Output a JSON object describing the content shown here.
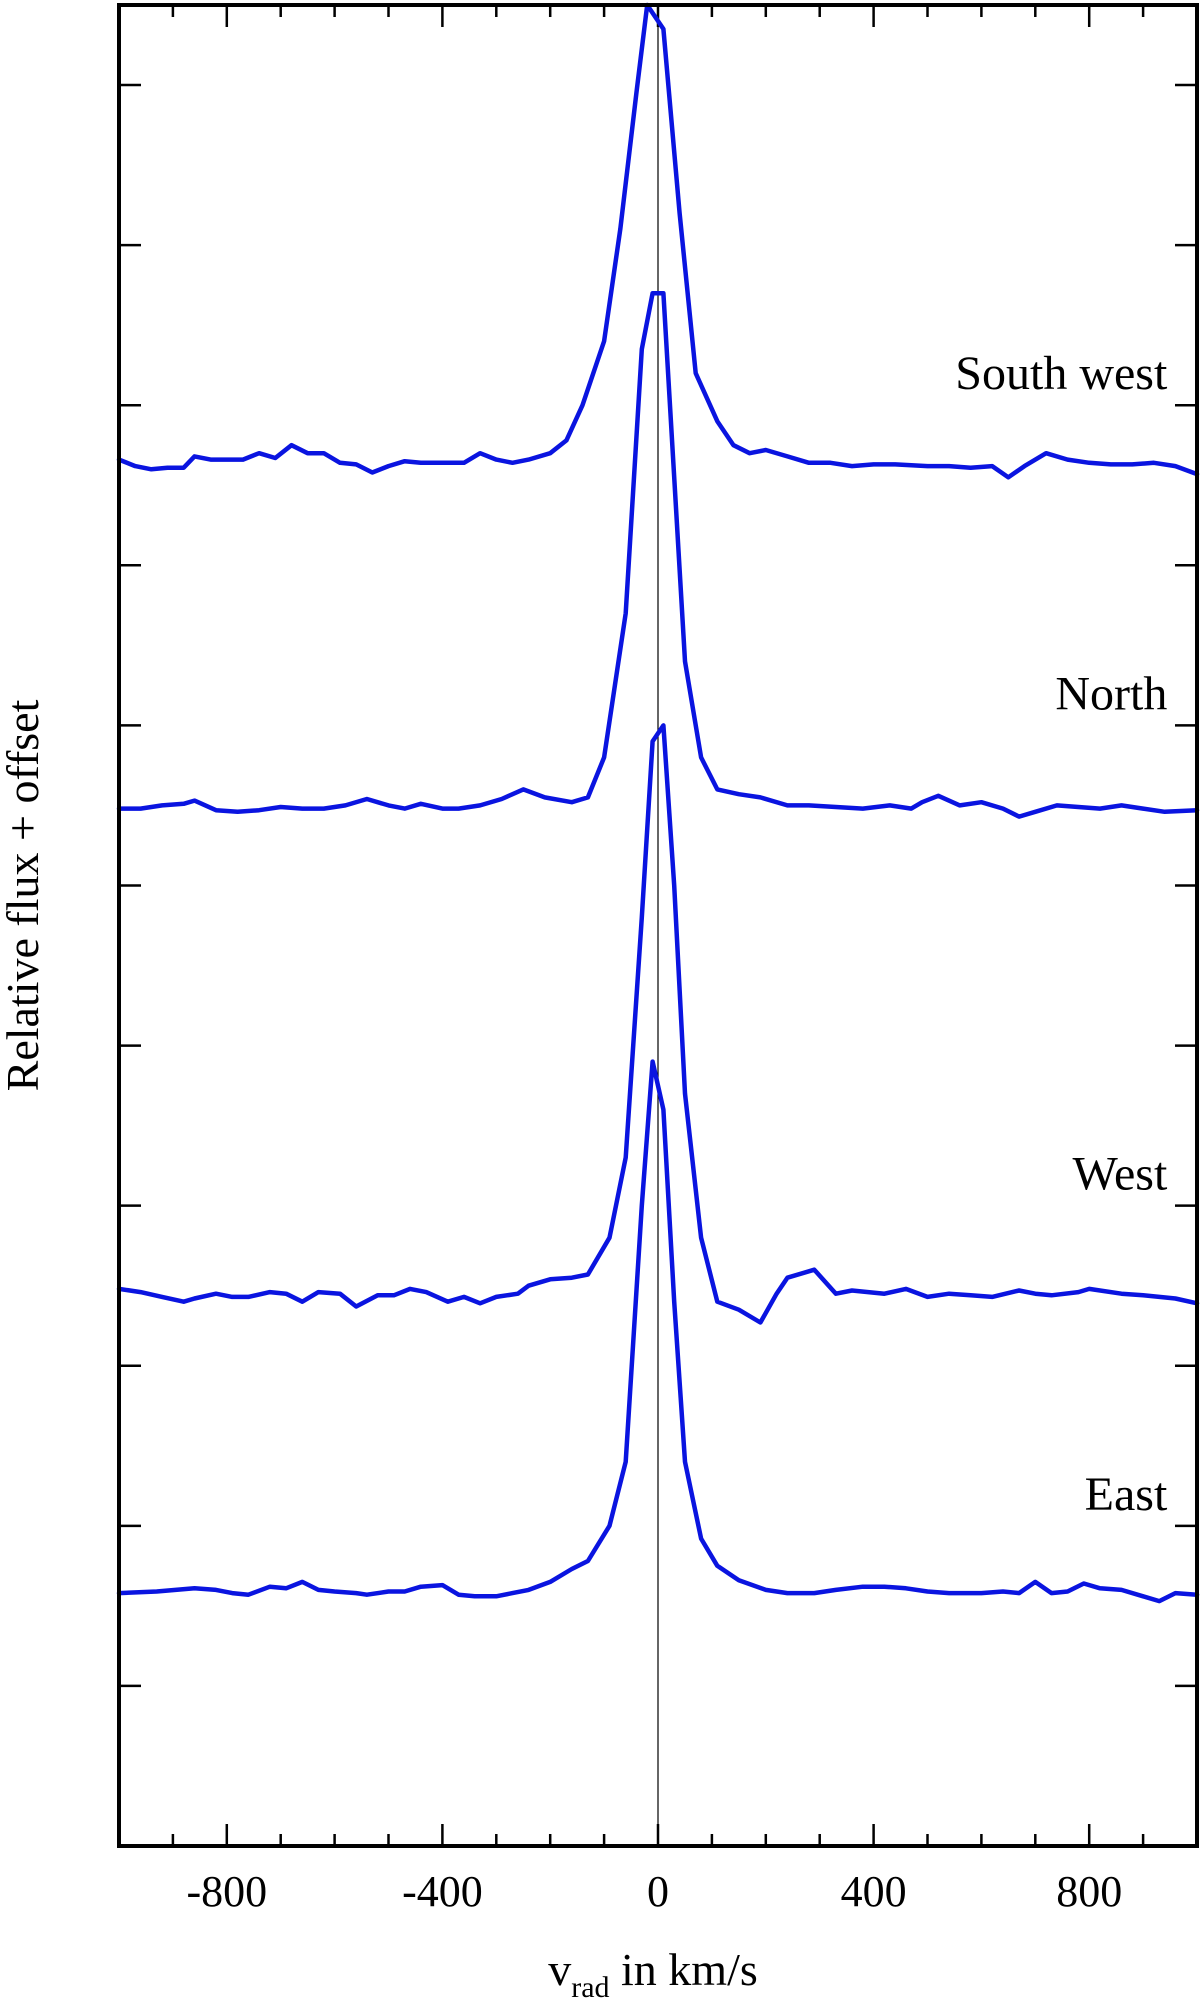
{
  "chart_data": {
    "type": "line",
    "title": "",
    "xlabel": {
      "main": "v",
      "sub": "rad",
      "rest": " in km/s"
    },
    "ylabel": "Relative flux + offset",
    "xlim": [
      -1000,
      1000
    ],
    "ylim": [
      0,
      11.5
    ],
    "x_ticks": [
      -800,
      -400,
      0,
      400,
      800
    ],
    "x_tick_labels": [
      "-800",
      "-400",
      "0",
      "400",
      "800"
    ],
    "x_minor_step": 100,
    "y_ticks": [
      1,
      2,
      3,
      4,
      5,
      6,
      7,
      8,
      9,
      10,
      11
    ],
    "y_tick_labels_shown": false,
    "zero_line": true,
    "line_color": "#0a14e0",
    "series": [
      {
        "name": "East",
        "label_x": 880,
        "label_y": 2.1,
        "x": [
          -1000,
          -930,
          -860,
          -820,
          -790,
          -760,
          -720,
          -690,
          -660,
          -630,
          -600,
          -560,
          -540,
          -500,
          -470,
          -440,
          -400,
          -370,
          -340,
          -300,
          -270,
          -240,
          -200,
          -160,
          -130,
          -90,
          -60,
          -30,
          -10,
          10,
          30,
          50,
          80,
          110,
          150,
          200,
          240,
          290,
          330,
          380,
          420,
          460,
          500,
          540,
          600,
          640,
          670,
          700,
          730,
          760,
          790,
          820,
          860,
          900,
          930,
          960,
          1000
        ],
        "y": [
          1.58,
          1.59,
          1.61,
          1.6,
          1.58,
          1.57,
          1.62,
          1.61,
          1.65,
          1.6,
          1.59,
          1.58,
          1.57,
          1.59,
          1.59,
          1.62,
          1.63,
          1.57,
          1.56,
          1.56,
          1.58,
          1.6,
          1.65,
          1.73,
          1.78,
          2.0,
          2.4,
          4.0,
          4.9,
          4.6,
          3.4,
          2.4,
          1.92,
          1.75,
          1.66,
          1.6,
          1.58,
          1.58,
          1.6,
          1.62,
          1.62,
          1.61,
          1.59,
          1.58,
          1.58,
          1.59,
          1.58,
          1.65,
          1.58,
          1.59,
          1.64,
          1.61,
          1.6,
          1.56,
          1.53,
          1.58,
          1.57
        ]
      },
      {
        "name": "West",
        "label_x": 880,
        "label_y": 4.1,
        "x": [
          -1000,
          -960,
          -920,
          -880,
          -860,
          -820,
          -790,
          -760,
          -720,
          -690,
          -660,
          -630,
          -590,
          -560,
          -520,
          -490,
          -460,
          -430,
          -390,
          -360,
          -330,
          -300,
          -260,
          -240,
          -200,
          -160,
          -130,
          -90,
          -60,
          -30,
          -10,
          10,
          30,
          50,
          80,
          110,
          150,
          190,
          220,
          240,
          290,
          330,
          360,
          420,
          460,
          500,
          540,
          580,
          620,
          670,
          700,
          730,
          780,
          800,
          860,
          900,
          960,
          1000
        ],
        "y": [
          3.48,
          3.46,
          3.43,
          3.4,
          3.42,
          3.45,
          3.43,
          3.43,
          3.46,
          3.45,
          3.4,
          3.46,
          3.45,
          3.37,
          3.44,
          3.44,
          3.48,
          3.46,
          3.4,
          3.43,
          3.39,
          3.43,
          3.45,
          3.5,
          3.54,
          3.55,
          3.57,
          3.8,
          4.3,
          5.8,
          6.9,
          7.0,
          6.0,
          4.7,
          3.8,
          3.4,
          3.35,
          3.27,
          3.45,
          3.55,
          3.6,
          3.45,
          3.47,
          3.45,
          3.48,
          3.43,
          3.45,
          3.44,
          3.43,
          3.47,
          3.45,
          3.44,
          3.46,
          3.48,
          3.45,
          3.44,
          3.42,
          3.39
        ]
      },
      {
        "name": "North",
        "label_x": 880,
        "label_y": 7.1,
        "x": [
          -1000,
          -960,
          -920,
          -880,
          -860,
          -820,
          -780,
          -740,
          -700,
          -660,
          -620,
          -580,
          -540,
          -500,
          -470,
          -440,
          -400,
          -370,
          -330,
          -290,
          -250,
          -210,
          -160,
          -130,
          -100,
          -60,
          -30,
          -10,
          10,
          30,
          50,
          80,
          110,
          150,
          190,
          240,
          280,
          330,
          380,
          430,
          470,
          490,
          520,
          560,
          600,
          640,
          670,
          700,
          740,
          780,
          820,
          860,
          900,
          940,
          1000
        ],
        "y": [
          6.48,
          6.48,
          6.5,
          6.51,
          6.53,
          6.47,
          6.46,
          6.47,
          6.49,
          6.48,
          6.48,
          6.5,
          6.54,
          6.5,
          6.48,
          6.51,
          6.48,
          6.48,
          6.5,
          6.54,
          6.6,
          6.55,
          6.52,
          6.55,
          6.8,
          7.7,
          9.35,
          9.7,
          9.7,
          8.55,
          7.4,
          6.8,
          6.6,
          6.57,
          6.55,
          6.5,
          6.5,
          6.49,
          6.48,
          6.5,
          6.48,
          6.52,
          6.56,
          6.5,
          6.52,
          6.48,
          6.43,
          6.46,
          6.5,
          6.49,
          6.48,
          6.5,
          6.48,
          6.46,
          6.47
        ]
      },
      {
        "name": "South west",
        "label_x": 880,
        "label_y": 9.1,
        "x": [
          -1000,
          -970,
          -940,
          -910,
          -880,
          -860,
          -830,
          -800,
          -770,
          -740,
          -710,
          -680,
          -650,
          -620,
          -590,
          -560,
          -530,
          -500,
          -470,
          -440,
          -400,
          -360,
          -330,
          -300,
          -270,
          -240,
          -200,
          -170,
          -140,
          -100,
          -70,
          -40,
          -20,
          10,
          40,
          70,
          110,
          140,
          170,
          200,
          240,
          280,
          320,
          360,
          400,
          440,
          500,
          540,
          580,
          620,
          650,
          680,
          720,
          760,
          800,
          840,
          880,
          920,
          960,
          1000
        ],
        "y": [
          8.66,
          8.62,
          8.6,
          8.61,
          8.61,
          8.68,
          8.66,
          8.66,
          8.66,
          8.7,
          8.67,
          8.75,
          8.7,
          8.7,
          8.64,
          8.63,
          8.58,
          8.62,
          8.65,
          8.64,
          8.64,
          8.64,
          8.7,
          8.66,
          8.64,
          8.66,
          8.7,
          8.78,
          9.0,
          9.4,
          10.1,
          10.95,
          11.5,
          11.35,
          10.2,
          9.2,
          8.9,
          8.75,
          8.7,
          8.72,
          8.68,
          8.64,
          8.64,
          8.62,
          8.63,
          8.63,
          8.62,
          8.62,
          8.61,
          8.62,
          8.55,
          8.62,
          8.7,
          8.66,
          8.64,
          8.63,
          8.63,
          8.64,
          8.62,
          8.57
        ]
      }
    ]
  }
}
